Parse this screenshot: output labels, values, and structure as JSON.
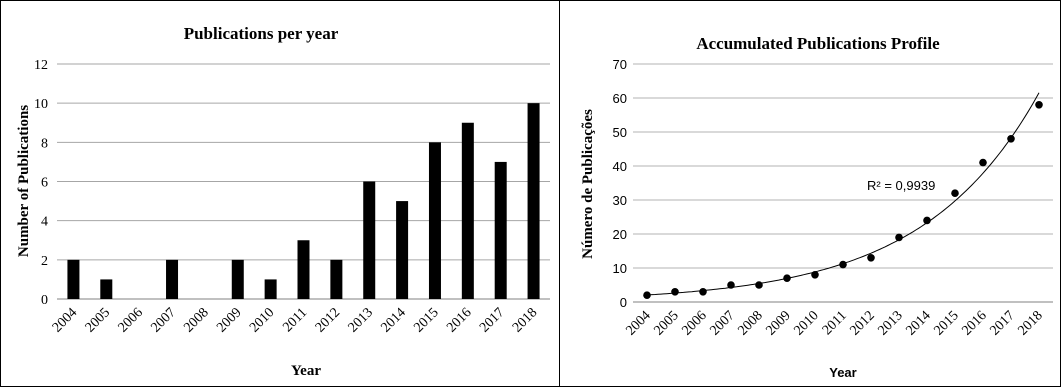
{
  "chart_data": [
    {
      "type": "bar",
      "title": "Publications per year",
      "xlabel": "Year",
      "ylabel": "Number of Publications",
      "ylim": [
        0,
        12
      ],
      "yticks": [
        0,
        2,
        4,
        6,
        8,
        10,
        12
      ],
      "grid": true,
      "legend": "none",
      "categories": [
        "2004",
        "2005",
        "2006",
        "2007",
        "2008",
        "2009",
        "2010",
        "2011",
        "2012",
        "2013",
        "2014",
        "2015",
        "2016",
        "2017",
        "2018"
      ],
      "values": [
        2,
        1,
        0,
        2,
        0,
        2,
        1,
        3,
        2,
        6,
        5,
        8,
        9,
        7,
        10
      ],
      "bar_color": "#000000"
    },
    {
      "type": "scatter",
      "title": "Accumulated Publications Profile",
      "xlabel": "Year",
      "ylabel": "Número de Publicações",
      "ylim": [
        0,
        70
      ],
      "yticks": [
        0,
        10,
        20,
        30,
        40,
        50,
        60,
        70
      ],
      "grid": true,
      "legend": "none",
      "categories": [
        "2004",
        "2005",
        "2006",
        "2007",
        "2008",
        "2009",
        "2010",
        "2011",
        "2012",
        "2013",
        "2014",
        "2015",
        "2016",
        "2017",
        "2018"
      ],
      "values": [
        2,
        3,
        3,
        5,
        5,
        7,
        8,
        11,
        13,
        19,
        24,
        32,
        41,
        48,
        58
      ],
      "trendline": {
        "type": "exponential",
        "label": "R² = 0,9939"
      },
      "point_color": "#000000"
    }
  ]
}
